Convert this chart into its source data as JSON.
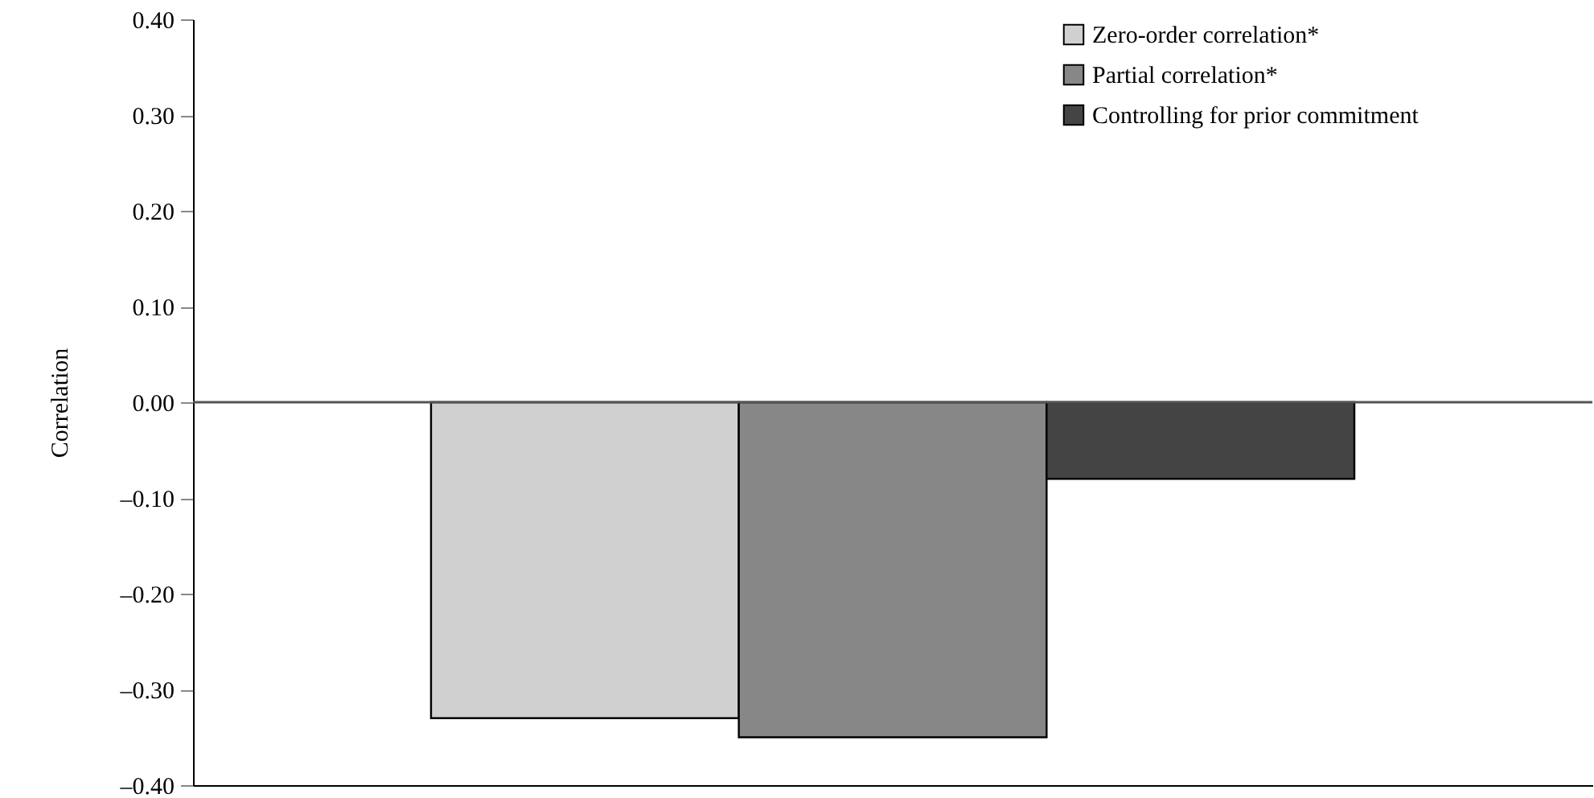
{
  "chart_data": {
    "type": "bar",
    "ylabel": "Correlation",
    "categories": [
      null
    ],
    "series": [
      {
        "name": "Zero-order correlation*",
        "color": "#d0d0d0",
        "values": [
          -0.33
        ]
      },
      {
        "name": "Partial correlation*",
        "color": "#878787",
        "values": [
          -0.35
        ]
      },
      {
        "name": "Controlling for prior commitment",
        "color": "#444444",
        "values": [
          -0.08
        ]
      }
    ],
    "ylim": [
      -0.4,
      0.4
    ],
    "yticks": [
      {
        "value": 0.4,
        "label": "0.40"
      },
      {
        "value": 0.3,
        "label": "0.30"
      },
      {
        "value": 0.2,
        "label": "0.20"
      },
      {
        "value": 0.1,
        "label": "0.10"
      },
      {
        "value": 0,
        "label": "0.00"
      },
      {
        "value": -0.1,
        "label": "–0.10"
      },
      {
        "value": -0.2,
        "label": "–0.20"
      },
      {
        "value": -0.3,
        "label": "–0.30"
      },
      {
        "value": -0.4,
        "label": "–0.40"
      }
    ],
    "ref_lines": [
      {
        "axis": "y",
        "value": 0
      }
    ],
    "grid": false,
    "legend": "top right",
    "tick_labels": "y"
  }
}
